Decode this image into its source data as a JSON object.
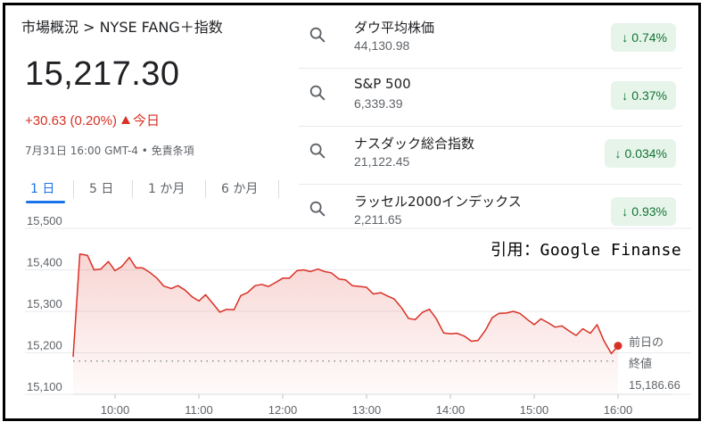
{
  "breadcrumb": "市場概況 > NYSE FANG＋指数",
  "price": "15,217.30",
  "change": {
    "value": "+30.63 (0.20%)",
    "period": "今日",
    "color": "#d93025"
  },
  "meta": "7月31日 16:00 GMT-4 • 免責条項",
  "tabs": [
    {
      "label": "1 日",
      "active": true
    },
    {
      "label": "5 日",
      "active": false
    },
    {
      "label": "1 か月",
      "active": false
    },
    {
      "label": "6 か月",
      "active": false
    }
  ],
  "indices": [
    {
      "name": "ダウ平均株価",
      "value": "44,130.98",
      "change": "0.74%",
      "icon": "search-icon"
    },
    {
      "name": "S&P 500",
      "value": "6,339.39",
      "change": "0.37%",
      "icon": "search-icon"
    },
    {
      "name": "ナスダック総合指数",
      "value": "21,122.45",
      "change": "0.034%",
      "icon": "search-icon"
    },
    {
      "name": "ラッセル2000インデックス",
      "value": "2,211.65",
      "change": "0.93%",
      "icon": "search-icon"
    }
  ],
  "citation": "引用：Google Finanse",
  "chart_data": {
    "type": "area",
    "ylim": [
      15100,
      15500
    ],
    "yticks": [
      "15,500",
      "15,400",
      "15,300",
      "15,200",
      "15,100"
    ],
    "ytick_values": [
      15500,
      15400,
      15300,
      15200,
      15100
    ],
    "xticks": [
      "10:00",
      "11:00",
      "12:00",
      "13:00",
      "14:00",
      "15:00",
      "16:00"
    ],
    "xtick_values": [
      10,
      11,
      12,
      13,
      14,
      15,
      16
    ],
    "xlim": [
      9.5,
      16.0
    ],
    "previous_close": {
      "line1": "前日の",
      "line2": "終値",
      "value": "15,186.66",
      "numeric": 15186.66
    },
    "series": [
      {
        "color": "#d93025",
        "x": [
          9.5,
          9.58,
          9.67,
          9.75,
          9.83,
          9.92,
          10.0,
          10.08,
          10.17,
          10.25,
          10.33,
          10.42,
          10.5,
          10.58,
          10.67,
          10.75,
          10.83,
          10.92,
          11.0,
          11.08,
          11.17,
          11.25,
          11.33,
          11.42,
          11.5,
          11.58,
          11.67,
          11.75,
          11.83,
          11.92,
          12.0,
          12.08,
          12.17,
          12.25,
          12.33,
          12.42,
          12.5,
          12.58,
          12.67,
          12.75,
          12.83,
          12.92,
          13.0,
          13.08,
          13.17,
          13.25,
          13.33,
          13.42,
          13.5,
          13.58,
          13.67,
          13.75,
          13.83,
          13.92,
          14.0,
          14.08,
          14.17,
          14.25,
          14.33,
          14.42,
          14.5,
          14.58,
          14.67,
          14.75,
          14.83,
          14.92,
          15.0,
          15.08,
          15.17,
          15.25,
          15.33,
          15.42,
          15.5,
          15.58,
          15.67,
          15.75,
          15.83,
          15.92,
          16.0
        ],
        "values": [
          15190,
          15438,
          15435,
          15400,
          15402,
          15420,
          15398,
          15408,
          15430,
          15405,
          15405,
          15393,
          15380,
          15361,
          15355,
          15362,
          15352,
          15335,
          15325,
          15340,
          15318,
          15298,
          15305,
          15304,
          15338,
          15345,
          15362,
          15365,
          15360,
          15370,
          15380,
          15380,
          15398,
          15400,
          15396,
          15402,
          15396,
          15393,
          15378,
          15376,
          15362,
          15360,
          15358,
          15342,
          15345,
          15337,
          15330,
          15308,
          15283,
          15280,
          15298,
          15305,
          15283,
          15248,
          15246,
          15247,
          15240,
          15228,
          15230,
          15255,
          15285,
          15295,
          15296,
          15300,
          15295,
          15280,
          15268,
          15282,
          15272,
          15262,
          15265,
          15252,
          15242,
          15258,
          15247,
          15268,
          15230,
          15198,
          15217
        ]
      }
    ]
  }
}
